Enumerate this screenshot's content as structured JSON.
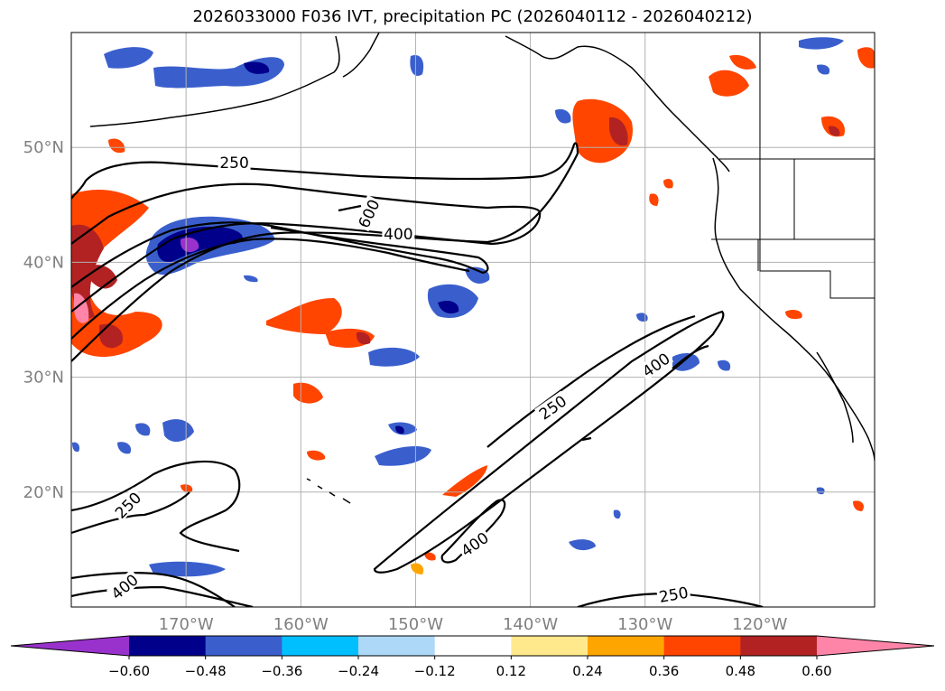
{
  "title": "2026033000 F036 IVT, precipitation PC (2026040112 - 2026040212)",
  "map": {
    "lon_range": [
      -180,
      -110
    ],
    "lat_range": [
      10,
      60
    ],
    "lon_ticks": [
      {
        "value": -170,
        "label": "170°W"
      },
      {
        "value": -160,
        "label": "160°W"
      },
      {
        "value": -150,
        "label": "150°W"
      },
      {
        "value": -140,
        "label": "140°W"
      },
      {
        "value": -130,
        "label": "130°W"
      },
      {
        "value": -120,
        "label": "120°W"
      }
    ],
    "lat_ticks": [
      {
        "value": 50,
        "label": "50°N"
      },
      {
        "value": 40,
        "label": "40°N"
      },
      {
        "value": 30,
        "label": "30°N"
      },
      {
        "value": 20,
        "label": "20°N"
      }
    ],
    "grid": true
  },
  "ivt_contours": [
    {
      "level": "250",
      "label": "250",
      "label_at": [
        -165.8,
        48.6
      ],
      "label_angle": 0
    },
    {
      "level": "400",
      "label": "400",
      "label_at": [
        -151.5,
        42.4
      ],
      "label_angle": 0
    },
    {
      "level": "600",
      "label": "600",
      "label_at": [
        -154.0,
        44.2
      ],
      "label_angle": -65
    },
    {
      "level": "400",
      "label": "400",
      "label_at": [
        -129.0,
        31.0
      ],
      "label_angle": -35
    },
    {
      "level": "250",
      "label": "250",
      "label_at": [
        -138.0,
        27.3
      ],
      "label_angle": -35
    },
    {
      "level": "400",
      "label": "400",
      "label_at": [
        -144.8,
        15.4
      ],
      "label_angle": -35
    },
    {
      "level": "250",
      "label": "250",
      "label_at": [
        -175.0,
        18.8
      ],
      "label_angle": -45
    },
    {
      "level": "400",
      "label": "400",
      "label_at": [
        -175.3,
        11.7
      ],
      "label_angle": -40
    },
    {
      "level": "250",
      "label": "250",
      "label_at": [
        -127.5,
        11.0
      ],
      "label_angle": -10
    }
  ],
  "colorbar": {
    "colors": [
      "#9932cc",
      "#00008b",
      "#3a5fcd",
      "#00bfff",
      "#add8f7",
      "#ffffff",
      "#ffe98c",
      "#ffa500",
      "#ff4500",
      "#b22222",
      "#ff85a8"
    ],
    "tick_labels": [
      "−0.60",
      "−0.48",
      "−0.36",
      "−0.24",
      "−0.12",
      "0.12",
      "0.24",
      "0.36",
      "0.48",
      "0.60"
    ]
  },
  "palette": {
    "coast": "#000000",
    "grid": "#b0b0b0",
    "tick_text": "#808080"
  }
}
